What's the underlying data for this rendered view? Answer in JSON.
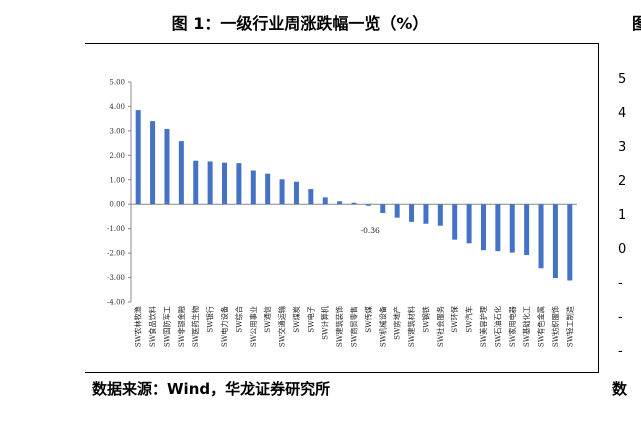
{
  "figure_title": "图 1：一级行业周涨跌幅一览（%）",
  "right_title_fragment": "图",
  "source_text": "数据来源：Wind，华龙证券研究所",
  "right_source_fragment": "数",
  "right_axis_fragments": [
    "5",
    "4",
    "3",
    "2",
    "1",
    "0",
    "-",
    "-",
    "-"
  ],
  "colors": {
    "bar": "#4472C4",
    "axis": "#888888",
    "border": "#000000"
  },
  "chart_data": {
    "type": "bar",
    "title": "",
    "xlabel": "",
    "ylabel": "",
    "ylim": [
      -4.0,
      5.0
    ],
    "yticks": [
      "5.00",
      "4.00",
      "3.00",
      "2.00",
      "1.00",
      "0.00",
      "-1.00",
      "-2.00",
      "-3.00",
      "-4.00"
    ],
    "grid": false,
    "legend": "none",
    "categories": [
      "SW农林牧渔",
      "SW食品饮料",
      "SW国防军工",
      "SW非银金融",
      "SW医药生物",
      "SW银行",
      "SW电力设备",
      "SW综合",
      "SW公用事业",
      "SW通信",
      "SW交通运输",
      "SW煤炭",
      "SW电子",
      "SW计算机",
      "SW建筑装饰",
      "SW商贸零售",
      "SW传媒",
      "SW机械设备",
      "SW房地产",
      "SW建筑材料",
      "SW钢铁",
      "SW社会服务",
      "SW环保",
      "SW汽车",
      "SW美容护理",
      "SW石油石化",
      "SW家用电器",
      "SW基础化工",
      "SW有色金属",
      "SW纺织服饰",
      "SW轻工制造"
    ],
    "values": [
      3.85,
      3.4,
      3.08,
      2.58,
      1.78,
      1.75,
      1.7,
      1.68,
      1.38,
      1.25,
      1.02,
      0.92,
      0.62,
      0.28,
      0.12,
      0.06,
      -0.06,
      -0.36,
      -0.55,
      -0.72,
      -0.8,
      -0.88,
      -1.45,
      -1.6,
      -1.88,
      -1.92,
      -1.98,
      -2.08,
      -2.62,
      -3.02,
      -3.12
    ],
    "annotations": [
      {
        "category": "SW机械设备",
        "text": "-0.36"
      }
    ]
  }
}
